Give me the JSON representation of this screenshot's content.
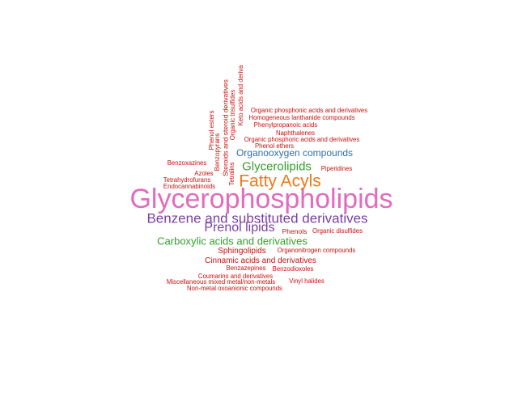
{
  "palette": {
    "red": "#cc1010",
    "pink": "#e36bbd",
    "purple": "#7a3fa0",
    "orange": "#ee7a1a",
    "green": "#33a02c",
    "blue": "#2f6fb0"
  },
  "words": [
    {
      "text": "Glycerophospholipids",
      "color": "pink"
    },
    {
      "text": "Benzene and substituted derivatives",
      "color": "purple"
    },
    {
      "text": "Prenol lipids",
      "color": "purple"
    },
    {
      "text": "Fatty Acyls",
      "color": "orange"
    },
    {
      "text": "Glycerolipids",
      "color": "green"
    },
    {
      "text": "Carboxylic acids and derivatives",
      "color": "green"
    },
    {
      "text": "Organooxygen compounds",
      "color": "blue"
    },
    {
      "text": "Organic phosphonic acids and derivatives",
      "color": "red"
    },
    {
      "text": "Homogeneous lanthanide compounds",
      "color": "red"
    },
    {
      "text": "Phenylpropanoic acids",
      "color": "red"
    },
    {
      "text": "Naphthalenes",
      "color": "red"
    },
    {
      "text": "Organic phosphoric acids and derivatives",
      "color": "red"
    },
    {
      "text": "Phenol ethers",
      "color": "red"
    },
    {
      "text": "Benzoxazines",
      "color": "red"
    },
    {
      "text": "Piperidines",
      "color": "red"
    },
    {
      "text": "Azoles",
      "color": "red"
    },
    {
      "text": "Tetrahydrofurans",
      "color": "red"
    },
    {
      "text": "Endocannabinoids",
      "color": "red"
    },
    {
      "text": "Phenols",
      "color": "red"
    },
    {
      "text": "Organic disulfides",
      "color": "red"
    },
    {
      "text": "Sphingolipids",
      "color": "red"
    },
    {
      "text": "Organonitrogen compounds",
      "color": "red"
    },
    {
      "text": "Cinnamic acids and derivatives",
      "color": "red"
    },
    {
      "text": "Benzazepines",
      "color": "red"
    },
    {
      "text": "Benzodioxoles",
      "color": "red"
    },
    {
      "text": "Coumarins and derivatives",
      "color": "red"
    },
    {
      "text": "Miscellaneous mixed metal/non-metals",
      "color": "red"
    },
    {
      "text": "Vinyl halides",
      "color": "red"
    },
    {
      "text": "Non-metal oxoanionic compounds",
      "color": "red"
    },
    {
      "text": "Phenol esters",
      "color": "red"
    },
    {
      "text": "Benzopyrans",
      "color": "red"
    },
    {
      "text": "Steroids and steroid derivatives",
      "color": "red"
    },
    {
      "text": "Tetralins",
      "color": "red"
    },
    {
      "text": "Organic trisulfides",
      "color": "red"
    },
    {
      "text": "Keto acids and deriva",
      "color": "red"
    }
  ]
}
